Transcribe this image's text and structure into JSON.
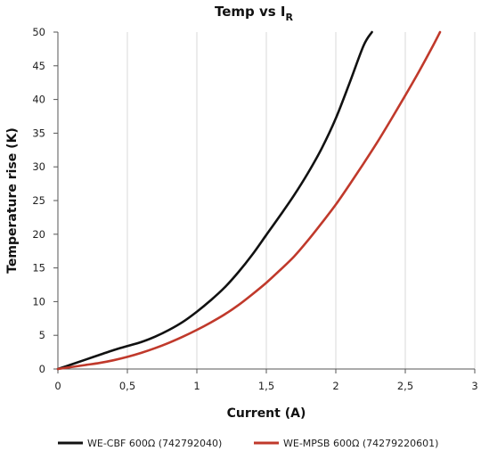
{
  "chart_data": {
    "type": "line",
    "title": "Temp vs I",
    "title_subscript": "R",
    "xlabel": "Current (A)",
    "ylabel": "Temperature rise (K)",
    "xlim": [
      0,
      3
    ],
    "ylim": [
      0,
      50
    ],
    "x_ticks": [
      "0",
      "0,5",
      "1",
      "1,5",
      "2",
      "2,5",
      "3"
    ],
    "y_ticks": [
      "0",
      "5",
      "10",
      "15",
      "20",
      "25",
      "30",
      "35",
      "40",
      "45",
      "50"
    ],
    "grid": "vertical",
    "legend_position": "bottom",
    "series": [
      {
        "name": "WE-CBF 600Ω  (742792040)",
        "color": "#111111",
        "x": [
          0,
          0.1,
          0.2,
          0.3,
          0.4,
          0.5,
          0.6,
          0.7,
          0.8,
          0.9,
          1.0,
          1.1,
          1.2,
          1.3,
          1.4,
          1.5,
          1.6,
          1.7,
          1.8,
          1.9,
          2.0,
          2.1,
          2.2,
          2.26
        ],
        "y": [
          0,
          0.7,
          1.4,
          2.1,
          2.8,
          3.4,
          4.0,
          4.8,
          5.8,
          7.0,
          8.5,
          10.2,
          12.1,
          14.4,
          17.0,
          19.9,
          22.8,
          25.8,
          29.1,
          32.8,
          37.2,
          42.5,
          48.0,
          50.0
        ]
      },
      {
        "name": "WE-MPSB 600Ω  (74279220601)",
        "color": "#c0392b",
        "x": [
          0,
          0.1,
          0.2,
          0.3,
          0.4,
          0.5,
          0.6,
          0.7,
          0.8,
          0.9,
          1.0,
          1.1,
          1.2,
          1.3,
          1.4,
          1.5,
          1.6,
          1.7,
          1.8,
          1.9,
          2.0,
          2.1,
          2.2,
          2.3,
          2.4,
          2.5,
          2.6,
          2.7,
          2.75
        ],
        "y": [
          0,
          0.3,
          0.6,
          0.9,
          1.3,
          1.8,
          2.4,
          3.1,
          3.9,
          4.8,
          5.8,
          6.9,
          8.1,
          9.5,
          11.1,
          12.8,
          14.7,
          16.7,
          19.1,
          21.7,
          24.4,
          27.4,
          30.5,
          33.7,
          37.1,
          40.6,
          44.2,
          48.0,
          50.0
        ]
      }
    ]
  }
}
